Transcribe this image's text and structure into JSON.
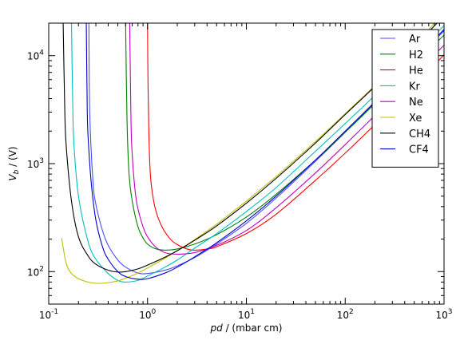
{
  "chart_data": {
    "type": "line",
    "title": "",
    "xlabel_symbol": "pd",
    "xlabel_unit": " / (mbar cm)",
    "ylabel_symbol": "V",
    "ylabel_subscript": "b",
    "ylabel_unit": " / (V)",
    "xscale": "log",
    "yscale": "log",
    "xlim": [
      0.1,
      1000
    ],
    "ylim": [
      50,
      20000
    ],
    "grid": false,
    "legend_position": "top-right",
    "x_tick_labels": [
      {
        "value": 0.1,
        "base": "10",
        "exp": "-1"
      },
      {
        "value": 1,
        "base": "10",
        "exp": "0"
      },
      {
        "value": 10,
        "base": "10",
        "exp": "1"
      },
      {
        "value": 100,
        "base": "10",
        "exp": "2"
      },
      {
        "value": 1000,
        "base": "10",
        "exp": "3"
      }
    ],
    "y_tick_labels": [
      {
        "value": 100,
        "base": "10",
        "exp": "2"
      },
      {
        "value": 1000,
        "base": "10",
        "exp": "3"
      },
      {
        "value": 10000,
        "base": "10",
        "exp": "4"
      }
    ],
    "series": [
      {
        "name": "Ar",
        "color": "#4b4bff",
        "x": [
          0.255,
          0.26,
          0.28,
          0.3,
          0.35,
          0.4,
          0.5,
          0.6,
          0.8,
          1.0,
          1.5,
          2,
          3,
          5,
          10,
          20,
          50,
          100,
          200,
          500,
          1000
        ],
        "y": [
          20000,
          3000,
          700,
          420,
          240,
          175,
          128,
          110,
          97,
          96,
          103,
          113,
          135,
          180,
          280,
          480,
          1050,
          1950,
          3700,
          8900,
          17000
        ]
      },
      {
        "name": "H2",
        "color": "#008000",
        "x": [
          0.6,
          0.62,
          0.65,
          0.7,
          0.8,
          0.9,
          1.0,
          1.2,
          1.5,
          2,
          3,
          5,
          10,
          20,
          50,
          100,
          200,
          500,
          1000
        ],
        "y": [
          20000,
          2500,
          800,
          450,
          260,
          205,
          180,
          163,
          158,
          162,
          180,
          220,
          320,
          520,
          1080,
          1950,
          3600,
          8300,
          15500
        ]
      },
      {
        "name": "He",
        "color": "#ff0000",
        "x": [
          1.0,
          1.01,
          1.03,
          1.06,
          1.1,
          1.2,
          1.4,
          1.7,
          2,
          2.5,
          3,
          4,
          5,
          10,
          20,
          50,
          100,
          200,
          500,
          1000
        ],
        "y": [
          20000,
          6000,
          2000,
          900,
          600,
          380,
          260,
          200,
          178,
          162,
          158,
          162,
          170,
          225,
          340,
          700,
          1250,
          2300,
          5200,
          10200
        ]
      },
      {
        "name": "Kr",
        "color": "#00bfbf",
        "x": [
          0.17,
          0.175,
          0.18,
          0.2,
          0.25,
          0.3,
          0.4,
          0.5,
          0.6,
          0.8,
          1.0,
          1.5,
          2,
          3,
          5,
          10,
          20,
          50,
          100,
          200,
          500,
          1000
        ],
        "y": [
          20000,
          3500,
          1500,
          500,
          190,
          130,
          96,
          83,
          80,
          83,
          91,
          110,
          128,
          165,
          225,
          360,
          600,
          1300,
          2350,
          4300,
          10000,
          19000
        ]
      },
      {
        "name": "Ne",
        "color": "#bf00bf",
        "x": [
          0.66,
          0.68,
          0.7,
          0.75,
          0.8,
          0.9,
          1.0,
          1.2,
          1.5,
          2,
          3,
          5,
          10,
          20,
          50,
          100,
          200,
          500,
          1000
        ],
        "y": [
          20000,
          2500,
          1200,
          550,
          380,
          260,
          210,
          170,
          150,
          145,
          150,
          175,
          240,
          390,
          820,
          1500,
          2800,
          6600,
          12500
        ]
      },
      {
        "name": "Xe",
        "color": "#bfbf00",
        "x": [
          0.135,
          0.15,
          0.17,
          0.2,
          0.25,
          0.3,
          0.35,
          0.4,
          0.5,
          0.6,
          0.8,
          1.0,
          1.5,
          2,
          3,
          5,
          10,
          20,
          50,
          100,
          200,
          500,
          800
        ],
        "y": [
          205,
          120,
          96,
          86,
          80,
          78,
          78,
          79,
          82,
          87,
          97,
          108,
          133,
          156,
          198,
          275,
          450,
          760,
          1600,
          2900,
          5300,
          12400,
          20000
        ]
      },
      {
        "name": "CH4",
        "color": "#000000",
        "x": [
          0.14,
          0.145,
          0.15,
          0.17,
          0.2,
          0.25,
          0.3,
          0.4,
          0.5,
          0.6,
          0.8,
          1.0,
          1.5,
          2,
          3,
          5,
          10,
          20,
          50,
          100,
          200,
          500,
          850
        ],
        "y": [
          20000,
          3500,
          1500,
          450,
          210,
          140,
          117,
          103,
          99,
          100,
          106,
          115,
          136,
          156,
          195,
          265,
          430,
          730,
          1550,
          2850,
          5200,
          12200,
          20000
        ]
      },
      {
        "name": "CF4",
        "color": "#0000cc",
        "x": [
          0.24,
          0.245,
          0.25,
          0.27,
          0.3,
          0.35,
          0.4,
          0.5,
          0.6,
          0.8,
          1.0,
          1.5,
          2,
          3,
          5,
          10,
          20,
          50,
          100,
          200,
          500,
          1000
        ],
        "y": [
          20000,
          3500,
          1800,
          650,
          300,
          170,
          130,
          100,
          90,
          85,
          86,
          97,
          110,
          137,
          185,
          295,
          500,
          1080,
          2000,
          3750,
          9000,
          17500
        ]
      }
    ]
  }
}
